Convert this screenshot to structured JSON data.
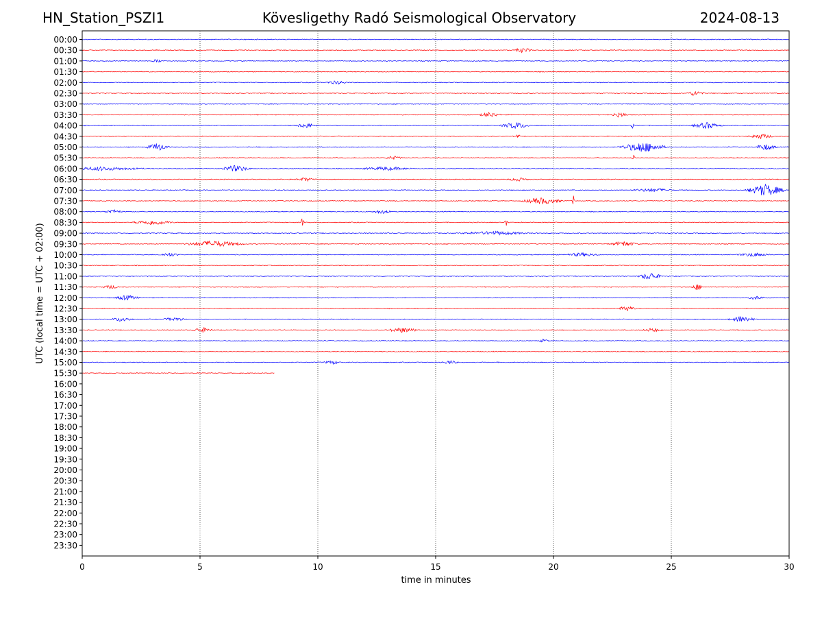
{
  "header": {
    "station": "HN_Station_PSZI1",
    "title": "Kövesligethy Radó Seismological Observatory",
    "date": "2024-08-13"
  },
  "chart_data": {
    "type": "line",
    "title": "Kövesligethy Radó Seismological Observatory",
    "xlabel": "time in minutes",
    "ylabel": "UTC (local time = UTC + 02:00)",
    "xlim": [
      0,
      30
    ],
    "x_ticks": [
      0,
      5,
      10,
      15,
      20,
      25,
      30
    ],
    "grid": "vertical dotted lines at 5-minute intervals",
    "row_labels": [
      "00:00",
      "00:30",
      "01:00",
      "01:30",
      "02:00",
      "02:30",
      "03:00",
      "03:30",
      "04:00",
      "04:30",
      "05:00",
      "05:30",
      "06:00",
      "06:30",
      "07:00",
      "07:30",
      "08:00",
      "08:30",
      "09:00",
      "09:30",
      "10:00",
      "10:30",
      "11:00",
      "11:30",
      "12:00",
      "12:30",
      "13:00",
      "13:30",
      "14:00",
      "14:30",
      "15:00",
      "15:30",
      "16:00",
      "16:30",
      "17:00",
      "17:30",
      "18:00",
      "18:30",
      "19:00",
      "19:30",
      "20:00",
      "20:30",
      "21:00",
      "21:30",
      "22:00",
      "22:30",
      "23:00",
      "23:30"
    ],
    "colors": {
      "on_the_hour": "#0000ff",
      "half_hour": "#ff0000"
    },
    "traces": [
      {
        "label": "00:00",
        "end": 30,
        "events": []
      },
      {
        "label": "00:30",
        "end": 30,
        "events": [
          [
            18.7,
            0.5,
            4
          ]
        ]
      },
      {
        "label": "01:00",
        "end": 30,
        "events": [
          [
            3.2,
            0.3,
            3
          ]
        ]
      },
      {
        "label": "01:30",
        "end": 30,
        "events": []
      },
      {
        "label": "02:00",
        "end": 30,
        "events": [
          [
            10.8,
            0.6,
            3
          ]
        ]
      },
      {
        "label": "02:30",
        "end": 30,
        "events": [
          [
            26,
            0.5,
            4
          ]
        ]
      },
      {
        "label": "03:00",
        "end": 30,
        "events": []
      },
      {
        "label": "03:30",
        "end": 30,
        "events": [
          [
            17.3,
            0.6,
            4
          ],
          [
            22.8,
            0.5,
            4
          ]
        ]
      },
      {
        "label": "04:00",
        "end": 30,
        "events": [
          [
            9.5,
            0.6,
            4
          ],
          [
            18.4,
            0.8,
            5
          ],
          [
            23.35,
            0.06,
            12
          ],
          [
            26.5,
            0.8,
            5
          ]
        ]
      },
      {
        "label": "04:30",
        "end": 30,
        "events": [
          [
            10.9,
            0.1,
            4
          ],
          [
            18.5,
            0.1,
            4
          ],
          [
            28.8,
            0.7,
            4
          ]
        ]
      },
      {
        "label": "05:00",
        "end": 30,
        "events": [
          [
            3.2,
            0.6,
            6
          ],
          [
            23.8,
            1.2,
            8
          ],
          [
            29,
            0.6,
            5
          ]
        ]
      },
      {
        "label": "05:30",
        "end": 30,
        "events": [
          [
            13.2,
            0.5,
            3
          ],
          [
            23.4,
            0.1,
            5
          ]
        ]
      },
      {
        "label": "06:00",
        "end": 30,
        "events": [
          [
            0.8,
            2.5,
            3
          ],
          [
            6.5,
            0.8,
            5
          ],
          [
            12.9,
            1.5,
            3
          ]
        ]
      },
      {
        "label": "06:30",
        "end": 30,
        "events": [
          [
            9.5,
            0.6,
            3
          ],
          [
            18.5,
            0.6,
            3
          ]
        ]
      },
      {
        "label": "07:00",
        "end": 30,
        "events": [
          [
            24.2,
            1.2,
            3
          ],
          [
            29.0,
            1.0,
            9
          ]
        ]
      },
      {
        "label": "07:30",
        "end": 30,
        "events": [
          [
            19.5,
            1.1,
            5
          ],
          [
            20.85,
            0.06,
            9
          ]
        ]
      },
      {
        "label": "08:00",
        "end": 30,
        "events": [
          [
            1.3,
            0.6,
            3
          ],
          [
            12.7,
            0.6,
            3
          ]
        ]
      },
      {
        "label": "08:30",
        "end": 30,
        "events": [
          [
            3,
            1.1,
            4
          ],
          [
            9.35,
            0.1,
            7
          ],
          [
            18,
            0.1,
            5
          ]
        ]
      },
      {
        "label": "09:00",
        "end": 30,
        "events": [
          [
            17.5,
            2,
            3
          ]
        ]
      },
      {
        "label": "09:30",
        "end": 30,
        "events": [
          [
            5.6,
            1.6,
            5
          ],
          [
            23,
            0.8,
            4
          ]
        ]
      },
      {
        "label": "10:00",
        "end": 30,
        "events": [
          [
            3.7,
            0.6,
            3
          ],
          [
            21.2,
            1.0,
            3
          ],
          [
            28.5,
            1.0,
            3
          ]
        ]
      },
      {
        "label": "10:30",
        "end": 30,
        "events": []
      },
      {
        "label": "11:00",
        "end": 30,
        "events": [
          [
            24.1,
            0.6,
            6
          ]
        ]
      },
      {
        "label": "11:30",
        "end": 30,
        "events": [
          [
            1.2,
            0.5,
            3
          ],
          [
            26.1,
            0.3,
            5
          ]
        ]
      },
      {
        "label": "12:00",
        "end": 30,
        "events": [
          [
            1.9,
            0.7,
            4
          ],
          [
            28.6,
            0.5,
            3
          ]
        ]
      },
      {
        "label": "12:30",
        "end": 30,
        "events": [
          [
            23.1,
            0.5,
            4
          ]
        ]
      },
      {
        "label": "13:00",
        "end": 30,
        "events": [
          [
            1.7,
            0.6,
            4
          ],
          [
            3.9,
            0.7,
            3
          ],
          [
            28.0,
            0.7,
            5
          ]
        ]
      },
      {
        "label": "13:30",
        "end": 30,
        "events": [
          [
            5.1,
            0.6,
            4
          ],
          [
            13.6,
            0.9,
            4
          ],
          [
            24.2,
            0.6,
            3
          ]
        ]
      },
      {
        "label": "14:00",
        "end": 30,
        "events": [
          [
            19.6,
            0.3,
            3
          ]
        ]
      },
      {
        "label": "14:30",
        "end": 30,
        "events": []
      },
      {
        "label": "15:00",
        "end": 30,
        "events": [
          [
            10.6,
            0.5,
            3
          ],
          [
            15.6,
            0.5,
            3
          ]
        ]
      },
      {
        "label": "15:30",
        "end": 8.15,
        "events": []
      }
    ]
  }
}
